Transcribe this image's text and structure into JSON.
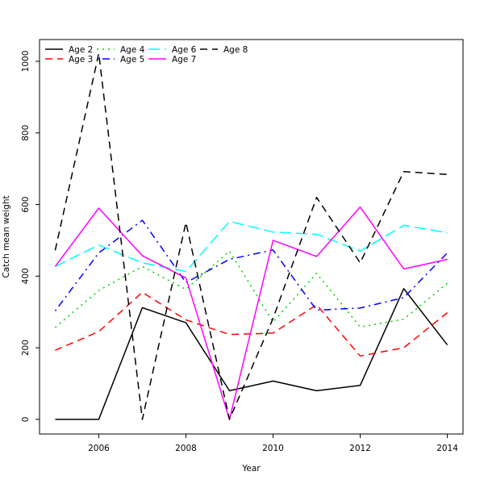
{
  "chart_data": {
    "type": "line",
    "title": "",
    "xlabel": "Year",
    "ylabel": "Catch mean weight",
    "x": [
      2005,
      2006,
      2007,
      2008,
      2009,
      2010,
      2011,
      2012,
      2013,
      2014
    ],
    "xlim": [
      2004.64,
      2014.36
    ],
    "ylim": [
      -40.8,
      1060.8
    ],
    "x_ticks": [
      2006,
      2008,
      2010,
      2012,
      2014
    ],
    "y_ticks": [
      0,
      200,
      400,
      600,
      800,
      1000
    ],
    "grid": false,
    "legend_position": "top-left",
    "series": [
      {
        "name": "Age 2",
        "color": "#000000",
        "dash": "solid",
        "values": [
          0,
          0,
          312,
          270,
          80,
          107,
          80,
          95,
          365,
          208
        ]
      },
      {
        "name": "Age 3",
        "color": "#ff0000",
        "dash": "dashed",
        "values": [
          193,
          245,
          355,
          278,
          237,
          241,
          320,
          177,
          200,
          298
        ]
      },
      {
        "name": "Age 4",
        "color": "#00cd00",
        "dash": "dotted",
        "values": [
          257,
          360,
          427,
          363,
          470,
          272,
          408,
          258,
          280,
          380
        ]
      },
      {
        "name": "Age 5",
        "color": "#0000ff",
        "dash": "dotdash",
        "values": [
          303,
          465,
          556,
          382,
          447,
          473,
          305,
          311,
          340,
          465
        ]
      },
      {
        "name": "Age 6",
        "color": "#00ffff",
        "dash": "longdash",
        "values": [
          427,
          487,
          437,
          413,
          553,
          523,
          517,
          470,
          542,
          521
        ]
      },
      {
        "name": "Age 7",
        "color": "#ff00ff",
        "dash": "solid",
        "values": [
          427,
          590,
          457,
          395,
          0,
          500,
          455,
          593,
          420,
          447
        ]
      },
      {
        "name": "Age 8",
        "color": "#000000",
        "dash": "dashed",
        "values": [
          472,
          1022,
          0,
          550,
          0,
          282,
          620,
          437,
          692,
          684
        ]
      }
    ]
  }
}
